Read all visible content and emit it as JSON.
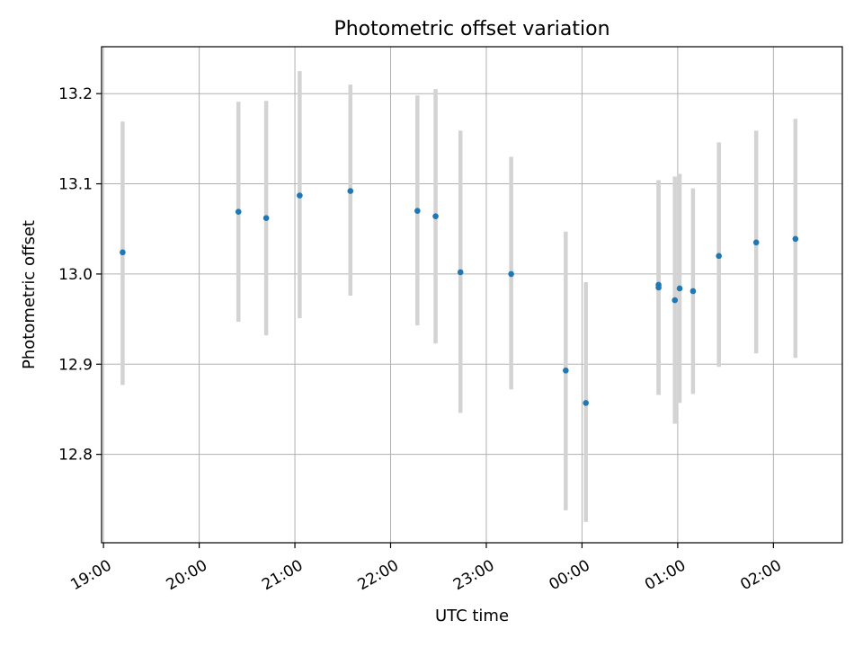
{
  "chart_data": {
    "type": "scatter",
    "title": "Photometric offset variation",
    "xlabel": "UTC time",
    "ylabel": "Photometric offset",
    "grid": true,
    "colors": {
      "points": "#1f77b4",
      "error_bars": "#d3d3d3"
    },
    "x_unit": "hours_after_19:00",
    "xlim": [
      -0.02,
      7.72
    ],
    "ylim": [
      12.702,
      13.252
    ],
    "xticks": [
      {
        "value": 0,
        "label": "19:00"
      },
      {
        "value": 1,
        "label": "20:00"
      },
      {
        "value": 2,
        "label": "21:00"
      },
      {
        "value": 3,
        "label": "22:00"
      },
      {
        "value": 4,
        "label": "23:00"
      },
      {
        "value": 5,
        "label": "00:00"
      },
      {
        "value": 6,
        "label": "01:00"
      },
      {
        "value": 7,
        "label": "02:00"
      }
    ],
    "yticks": [
      {
        "value": 12.8,
        "label": "12.8"
      },
      {
        "value": 12.9,
        "label": "12.9"
      },
      {
        "value": 13.0,
        "label": "13.0"
      },
      {
        "value": 13.1,
        "label": "13.1"
      },
      {
        "value": 13.2,
        "label": "13.2"
      }
    ],
    "points": [
      {
        "time": "19:12",
        "x": 0.2,
        "y": 13.024,
        "ylow": 12.877,
        "yhigh": 13.169
      },
      {
        "time": "20:25",
        "x": 1.41,
        "y": 13.069,
        "ylow": 12.947,
        "yhigh": 13.191
      },
      {
        "time": "20:42",
        "x": 1.7,
        "y": 13.062,
        "ylow": 12.932,
        "yhigh": 13.192
      },
      {
        "time": "21:03",
        "x": 2.05,
        "y": 13.087,
        "ylow": 12.951,
        "yhigh": 13.225
      },
      {
        "time": "21:35",
        "x": 2.58,
        "y": 13.092,
        "ylow": 12.976,
        "yhigh": 13.21
      },
      {
        "time": "22:17",
        "x": 3.28,
        "y": 13.07,
        "ylow": 12.943,
        "yhigh": 13.198
      },
      {
        "time": "22:28",
        "x": 3.47,
        "y": 13.064,
        "ylow": 12.923,
        "yhigh": 13.205
      },
      {
        "time": "22:44",
        "x": 3.73,
        "y": 13.002,
        "ylow": 12.846,
        "yhigh": 13.159
      },
      {
        "time": "23:16",
        "x": 4.26,
        "y": 13.0,
        "ylow": 12.872,
        "yhigh": 13.13
      },
      {
        "time": "23:50",
        "x": 4.83,
        "y": 12.893,
        "ylow": 12.738,
        "yhigh": 13.047
      },
      {
        "time": "00:02",
        "x": 5.04,
        "y": 12.857,
        "ylow": 12.725,
        "yhigh": 12.991
      },
      {
        "time": "00:48",
        "x": 5.8,
        "y": 12.988,
        "ylow": 12.866,
        "yhigh": 13.104
      },
      {
        "time": "00:48",
        "x": 5.8,
        "y": 12.985,
        "ylow": 12.866,
        "yhigh": 13.104
      },
      {
        "time": "00:58",
        "x": 5.97,
        "y": 12.971,
        "ylow": 12.834,
        "yhigh": 13.108
      },
      {
        "time": "01:01",
        "x": 6.02,
        "y": 12.984,
        "ylow": 12.857,
        "yhigh": 13.111
      },
      {
        "time": "01:09",
        "x": 6.16,
        "y": 12.981,
        "ylow": 12.867,
        "yhigh": 13.095
      },
      {
        "time": "01:25",
        "x": 6.43,
        "y": 13.02,
        "ylow": 12.897,
        "yhigh": 13.146
      },
      {
        "time": "01:49",
        "x": 6.82,
        "y": 13.035,
        "ylow": 12.912,
        "yhigh": 13.159
      },
      {
        "time": "02:13",
        "x": 7.23,
        "y": 13.039,
        "ylow": 12.907,
        "yhigh": 13.172
      }
    ]
  }
}
